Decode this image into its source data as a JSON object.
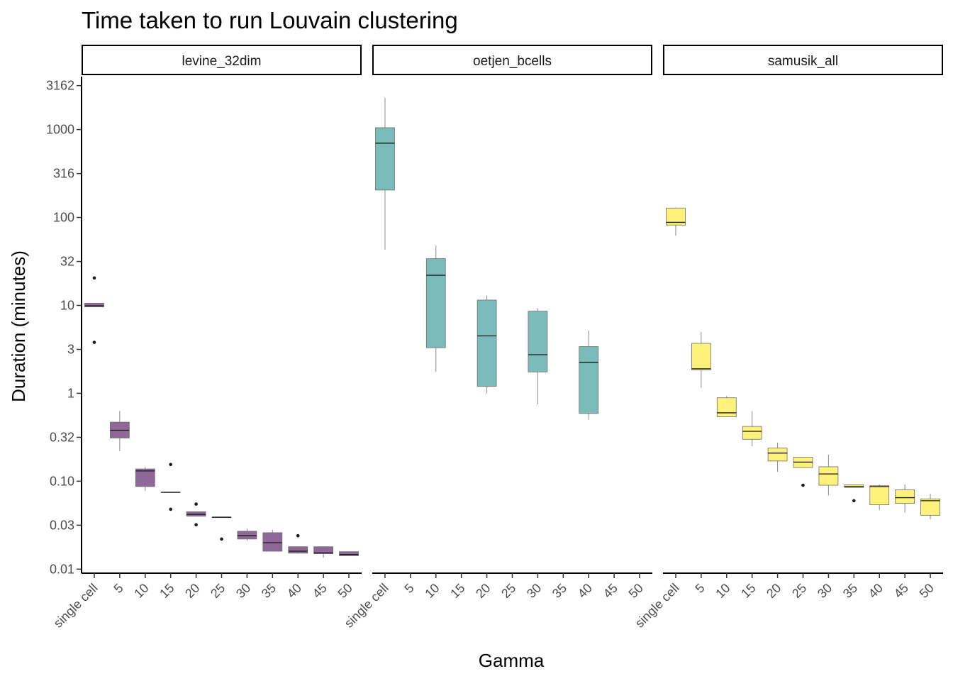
{
  "chart_data": {
    "type": "boxplot",
    "title": "Time taken to run Louvain clustering",
    "xlabel": "Gamma",
    "ylabel": "Duration (minutes)",
    "y_scale": "log10",
    "ylim": [
      0.009,
      4000
    ],
    "y_ticks": [
      {
        "value": 0.01,
        "label": "0.01"
      },
      {
        "value": 0.0316,
        "label": "0.03"
      },
      {
        "value": 0.1,
        "label": "0.10"
      },
      {
        "value": 0.316,
        "label": "0.32"
      },
      {
        "value": 1,
        "label": "1"
      },
      {
        "value": 3.16,
        "label": "3"
      },
      {
        "value": 10,
        "label": "10"
      },
      {
        "value": 31.6,
        "label": "32"
      },
      {
        "value": 100,
        "label": "100"
      },
      {
        "value": 316,
        "label": "316"
      },
      {
        "value": 1000,
        "label": "1000"
      },
      {
        "value": 3162,
        "label": "3162"
      }
    ],
    "categories": [
      "single cell",
      "5",
      "10",
      "15",
      "20",
      "25",
      "30",
      "35",
      "40",
      "45",
      "50"
    ],
    "grid": false,
    "legend": "none",
    "panels": [
      {
        "name": "levine_32dim",
        "color": "#440154",
        "boxes": [
          {
            "category": "single cell",
            "min": 9.6,
            "q1": 9.6,
            "median": 9.9,
            "q3": 10.6,
            "max": 10.6,
            "outliers": [
              20.5,
              3.8
            ]
          },
          {
            "category": "5",
            "min": 0.22,
            "q1": 0.31,
            "median": 0.38,
            "q3": 0.47,
            "max": 0.63,
            "outliers": []
          },
          {
            "category": "10",
            "min": 0.077,
            "q1": 0.087,
            "median": 0.131,
            "q3": 0.138,
            "max": 0.145,
            "outliers": []
          },
          {
            "category": "15",
            "min": 0.075,
            "q1": 0.075,
            "median": 0.075,
            "q3": 0.075,
            "max": 0.075,
            "outliers": [
              0.155,
              0.048
            ]
          },
          {
            "category": "20",
            "min": 0.04,
            "q1": 0.04,
            "median": 0.042,
            "q3": 0.045,
            "max": 0.045,
            "outliers": [
              0.055,
              0.032
            ]
          },
          {
            "category": "25",
            "min": 0.039,
            "q1": 0.039,
            "median": 0.039,
            "q3": 0.039,
            "max": 0.039,
            "outliers": [
              0.022
            ]
          },
          {
            "category": "30",
            "min": 0.021,
            "q1": 0.022,
            "median": 0.024,
            "q3": 0.027,
            "max": 0.029,
            "outliers": []
          },
          {
            "category": "35",
            "min": 0.016,
            "q1": 0.016,
            "median": 0.02,
            "q3": 0.026,
            "max": 0.028,
            "outliers": []
          },
          {
            "category": "40",
            "min": 0.015,
            "q1": 0.0152,
            "median": 0.016,
            "q3": 0.018,
            "max": 0.018,
            "outliers": [
              0.024
            ]
          },
          {
            "category": "45",
            "min": 0.0135,
            "q1": 0.015,
            "median": 0.0153,
            "q3": 0.018,
            "max": 0.018,
            "outliers": []
          },
          {
            "category": "50",
            "min": 0.0142,
            "q1": 0.0142,
            "median": 0.0147,
            "q3": 0.0158,
            "max": 0.0158,
            "outliers": []
          }
        ]
      },
      {
        "name": "oetjen_bcells",
        "color": "#21908C",
        "boxes": [
          {
            "category": "single cell",
            "min": 43,
            "q1": 205,
            "median": 700,
            "q3": 1050,
            "max": 2300,
            "outliers": []
          },
          {
            "category": "5",
            "min": null,
            "q1": null,
            "median": null,
            "q3": null,
            "max": null,
            "outliers": []
          },
          {
            "category": "10",
            "min": 1.75,
            "q1": 3.3,
            "median": 22,
            "q3": 34,
            "max": 48,
            "outliers": []
          },
          {
            "category": "15",
            "min": null,
            "q1": null,
            "median": null,
            "q3": null,
            "max": null,
            "outliers": []
          },
          {
            "category": "20",
            "min": 1.0,
            "q1": 1.2,
            "median": 4.5,
            "q3": 11.5,
            "max": 13,
            "outliers": []
          },
          {
            "category": "25",
            "min": null,
            "q1": null,
            "median": null,
            "q3": null,
            "max": null,
            "outliers": []
          },
          {
            "category": "30",
            "min": 0.75,
            "q1": 1.75,
            "median": 2.75,
            "q3": 8.6,
            "max": 9.2,
            "outliers": []
          },
          {
            "category": "35",
            "min": null,
            "q1": null,
            "median": null,
            "q3": null,
            "max": null,
            "outliers": []
          },
          {
            "category": "40",
            "min": 0.5,
            "q1": 0.59,
            "median": 2.25,
            "q3": 3.4,
            "max": 5.2,
            "outliers": []
          },
          {
            "category": "45",
            "min": null,
            "q1": null,
            "median": null,
            "q3": null,
            "max": null,
            "outliers": []
          },
          {
            "category": "50",
            "min": null,
            "q1": null,
            "median": null,
            "q3": null,
            "max": null,
            "outliers": []
          }
        ]
      },
      {
        "name": "samusik_all",
        "color": "#FDE725",
        "boxes": [
          {
            "category": "single cell",
            "min": 62,
            "q1": 82,
            "median": 88,
            "q3": 128,
            "max": 130,
            "outliers": []
          },
          {
            "category": "5",
            "min": 1.15,
            "q1": 1.85,
            "median": 1.9,
            "q3": 3.7,
            "max": 5.0,
            "outliers": []
          },
          {
            "category": "10",
            "min": 0.54,
            "q1": 0.54,
            "median": 0.6,
            "q3": 0.89,
            "max": 0.93,
            "outliers": []
          },
          {
            "category": "15",
            "min": 0.25,
            "q1": 0.3,
            "median": 0.37,
            "q3": 0.42,
            "max": 0.63,
            "outliers": []
          },
          {
            "category": "20",
            "min": 0.128,
            "q1": 0.17,
            "median": 0.209,
            "q3": 0.238,
            "max": 0.275,
            "outliers": []
          },
          {
            "category": "25",
            "min": 0.143,
            "q1": 0.143,
            "median": 0.165,
            "q3": 0.188,
            "max": 0.188,
            "outliers": [
              0.09
            ]
          },
          {
            "category": "30",
            "min": 0.069,
            "q1": 0.09,
            "median": 0.121,
            "q3": 0.146,
            "max": 0.2,
            "outliers": []
          },
          {
            "category": "35",
            "min": 0.085,
            "q1": 0.085,
            "median": 0.087,
            "q3": 0.091,
            "max": 0.091,
            "outliers": [
              0.06
            ]
          },
          {
            "category": "40",
            "min": 0.047,
            "q1": 0.054,
            "median": 0.087,
            "q3": 0.089,
            "max": 0.092,
            "outliers": []
          },
          {
            "category": "45",
            "min": 0.044,
            "q1": 0.056,
            "median": 0.065,
            "q3": 0.08,
            "max": 0.092,
            "outliers": []
          },
          {
            "category": "50",
            "min": 0.037,
            "q1": 0.041,
            "median": 0.06,
            "q3": 0.063,
            "max": 0.072,
            "outliers": []
          }
        ]
      }
    ]
  }
}
